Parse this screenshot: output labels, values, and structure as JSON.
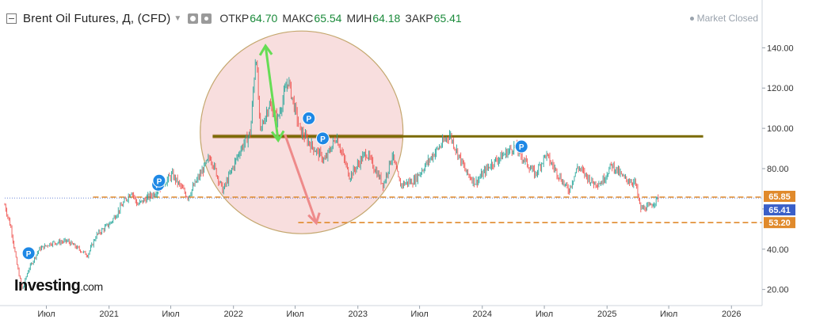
{
  "header": {
    "title": "Brent Oil Futures, Д, (CFD)",
    "open_label": "ОТКР",
    "open_value": "64.70",
    "high_label": "МАКС",
    "high_value": "65.54",
    "low_label": "МИН",
    "low_value": "64.18",
    "close_label": "ЗАКР",
    "close_value": "65.41",
    "market_status": "Market Closed",
    "collapse_icon": "minus-square-icon",
    "eye_icon": "eye-icon",
    "settings_icon": "gear-icon"
  },
  "logo": {
    "brand": "Investing",
    "suffix": ".com"
  },
  "colors": {
    "up": "#26a69a",
    "down": "#ef5350",
    "resistance_line": "#7a6a00",
    "resistance_band": "#b8875a",
    "orange_dashed": "#e08a2c",
    "circle_fill": "#f6d3d3",
    "circle_stroke": "#c4a76e",
    "green_arrow": "#66dd55",
    "red_arrow": "#ee8a8a",
    "current_price_tag": "#3a5fc8",
    "badge": "#1e88e5"
  },
  "chart_data": {
    "type": "line",
    "x_range": [
      "2020-03-01",
      "2026-04-01"
    ],
    "y_range": [
      12,
      148
    ],
    "log_scale": false,
    "grid": false,
    "y_ticks": [
      "20.00",
      "40.00",
      "60.00",
      "80.00",
      "100.00",
      "120.00",
      "140.00"
    ],
    "x_ticks": [
      "Июл",
      "2021",
      "Июл",
      "2022",
      "Июл",
      "2023",
      "Июл",
      "2024",
      "Июл",
      "2025",
      "Июл",
      "2026"
    ],
    "x_tick_dates": [
      "2020-07-01",
      "2021-01-01",
      "2021-07-01",
      "2022-01-01",
      "2022-07-01",
      "2023-01-01",
      "2023-07-01",
      "2024-01-01",
      "2024-07-01",
      "2025-01-01",
      "2025-07-01",
      "2026-01-01"
    ],
    "price_points": [
      {
        "date": "2020-03-01",
        "value": 62
      },
      {
        "date": "2020-03-20",
        "value": 50
      },
      {
        "date": "2020-04-05",
        "value": 33
      },
      {
        "date": "2020-04-21",
        "value": 20
      },
      {
        "date": "2020-05-10",
        "value": 30
      },
      {
        "date": "2020-06-10",
        "value": 40
      },
      {
        "date": "2020-07-15",
        "value": 43
      },
      {
        "date": "2020-09-01",
        "value": 44
      },
      {
        "date": "2020-10-30",
        "value": 37
      },
      {
        "date": "2020-11-25",
        "value": 47
      },
      {
        "date": "2021-01-05",
        "value": 53
      },
      {
        "date": "2021-03-08",
        "value": 69
      },
      {
        "date": "2021-03-25",
        "value": 62
      },
      {
        "date": "2021-05-15",
        "value": 68
      },
      {
        "date": "2021-07-05",
        "value": 77
      },
      {
        "date": "2021-08-20",
        "value": 66
      },
      {
        "date": "2021-10-25",
        "value": 86
      },
      {
        "date": "2021-12-01",
        "value": 69
      },
      {
        "date": "2022-01-20",
        "value": 89
      },
      {
        "date": "2022-02-20",
        "value": 98
      },
      {
        "date": "2022-03-08",
        "value": 139
      },
      {
        "date": "2022-03-20",
        "value": 98
      },
      {
        "date": "2022-04-15",
        "value": 112
      },
      {
        "date": "2022-05-10",
        "value": 104
      },
      {
        "date": "2022-06-10",
        "value": 124
      },
      {
        "date": "2022-07-15",
        "value": 99
      },
      {
        "date": "2022-08-15",
        "value": 92
      },
      {
        "date": "2022-09-26",
        "value": 84
      },
      {
        "date": "2022-10-30",
        "value": 96
      },
      {
        "date": "2022-12-08",
        "value": 76
      },
      {
        "date": "2023-01-25",
        "value": 88
      },
      {
        "date": "2023-03-17",
        "value": 72
      },
      {
        "date": "2023-04-12",
        "value": 87
      },
      {
        "date": "2023-05-04",
        "value": 72
      },
      {
        "date": "2023-06-15",
        "value": 74
      },
      {
        "date": "2023-08-10",
        "value": 87
      },
      {
        "date": "2023-09-27",
        "value": 97
      },
      {
        "date": "2023-11-15",
        "value": 78
      },
      {
        "date": "2023-12-12",
        "value": 73
      },
      {
        "date": "2024-01-25",
        "value": 82
      },
      {
        "date": "2024-04-05",
        "value": 91
      },
      {
        "date": "2024-06-04",
        "value": 77
      },
      {
        "date": "2024-07-05",
        "value": 87
      },
      {
        "date": "2024-09-10",
        "value": 69
      },
      {
        "date": "2024-10-07",
        "value": 81
      },
      {
        "date": "2024-11-20",
        "value": 73
      },
      {
        "date": "2024-12-15",
        "value": 73
      },
      {
        "date": "2025-01-15",
        "value": 82
      },
      {
        "date": "2025-02-20",
        "value": 75
      },
      {
        "date": "2025-03-25",
        "value": 73
      },
      {
        "date": "2025-04-09",
        "value": 60
      },
      {
        "date": "2025-05-05",
        "value": 61
      },
      {
        "date": "2025-05-31",
        "value": 65.41
      }
    ],
    "price_labels": [
      {
        "value": 65.85,
        "text": "65.85",
        "color": "#e08a2c"
      },
      {
        "value": 65.41,
        "text": "65.41",
        "color": "#3a5fc8"
      },
      {
        "value": 53.2,
        "text": "53.20",
        "color": "#e08a2c"
      }
    ],
    "resistance_level": 96,
    "support_levels": [
      65.85,
      53.2
    ],
    "previous_close_line": 65.41,
    "annotations": {
      "circle_center": {
        "date": "2022-07-20",
        "value": 98
      },
      "resistance_start": "2021-11-01",
      "resistance_end": "2025-10-10",
      "upper_dashed_start": "2020-11-15",
      "lower_dashed_start": "2022-07-10",
      "green_arrow": {
        "date": "2022-04-05",
        "from": 141,
        "to": 94
      },
      "red_arrow": {
        "from_date": "2022-06-01",
        "from": 97,
        "to_date": "2022-09-01",
        "to": 53
      }
    },
    "event_badges": [
      {
        "date": "2020-05-10",
        "value": 38,
        "label": "P"
      },
      {
        "date": "2021-05-25",
        "value": 72,
        "label": "P"
      },
      {
        "date": "2021-05-28",
        "value": 74,
        "label": "P"
      },
      {
        "date": "2022-08-10",
        "value": 105,
        "label": "P"
      },
      {
        "date": "2022-09-20",
        "value": 95,
        "label": "P"
      },
      {
        "date": "2024-04-25",
        "value": 91,
        "label": "P"
      }
    ]
  }
}
